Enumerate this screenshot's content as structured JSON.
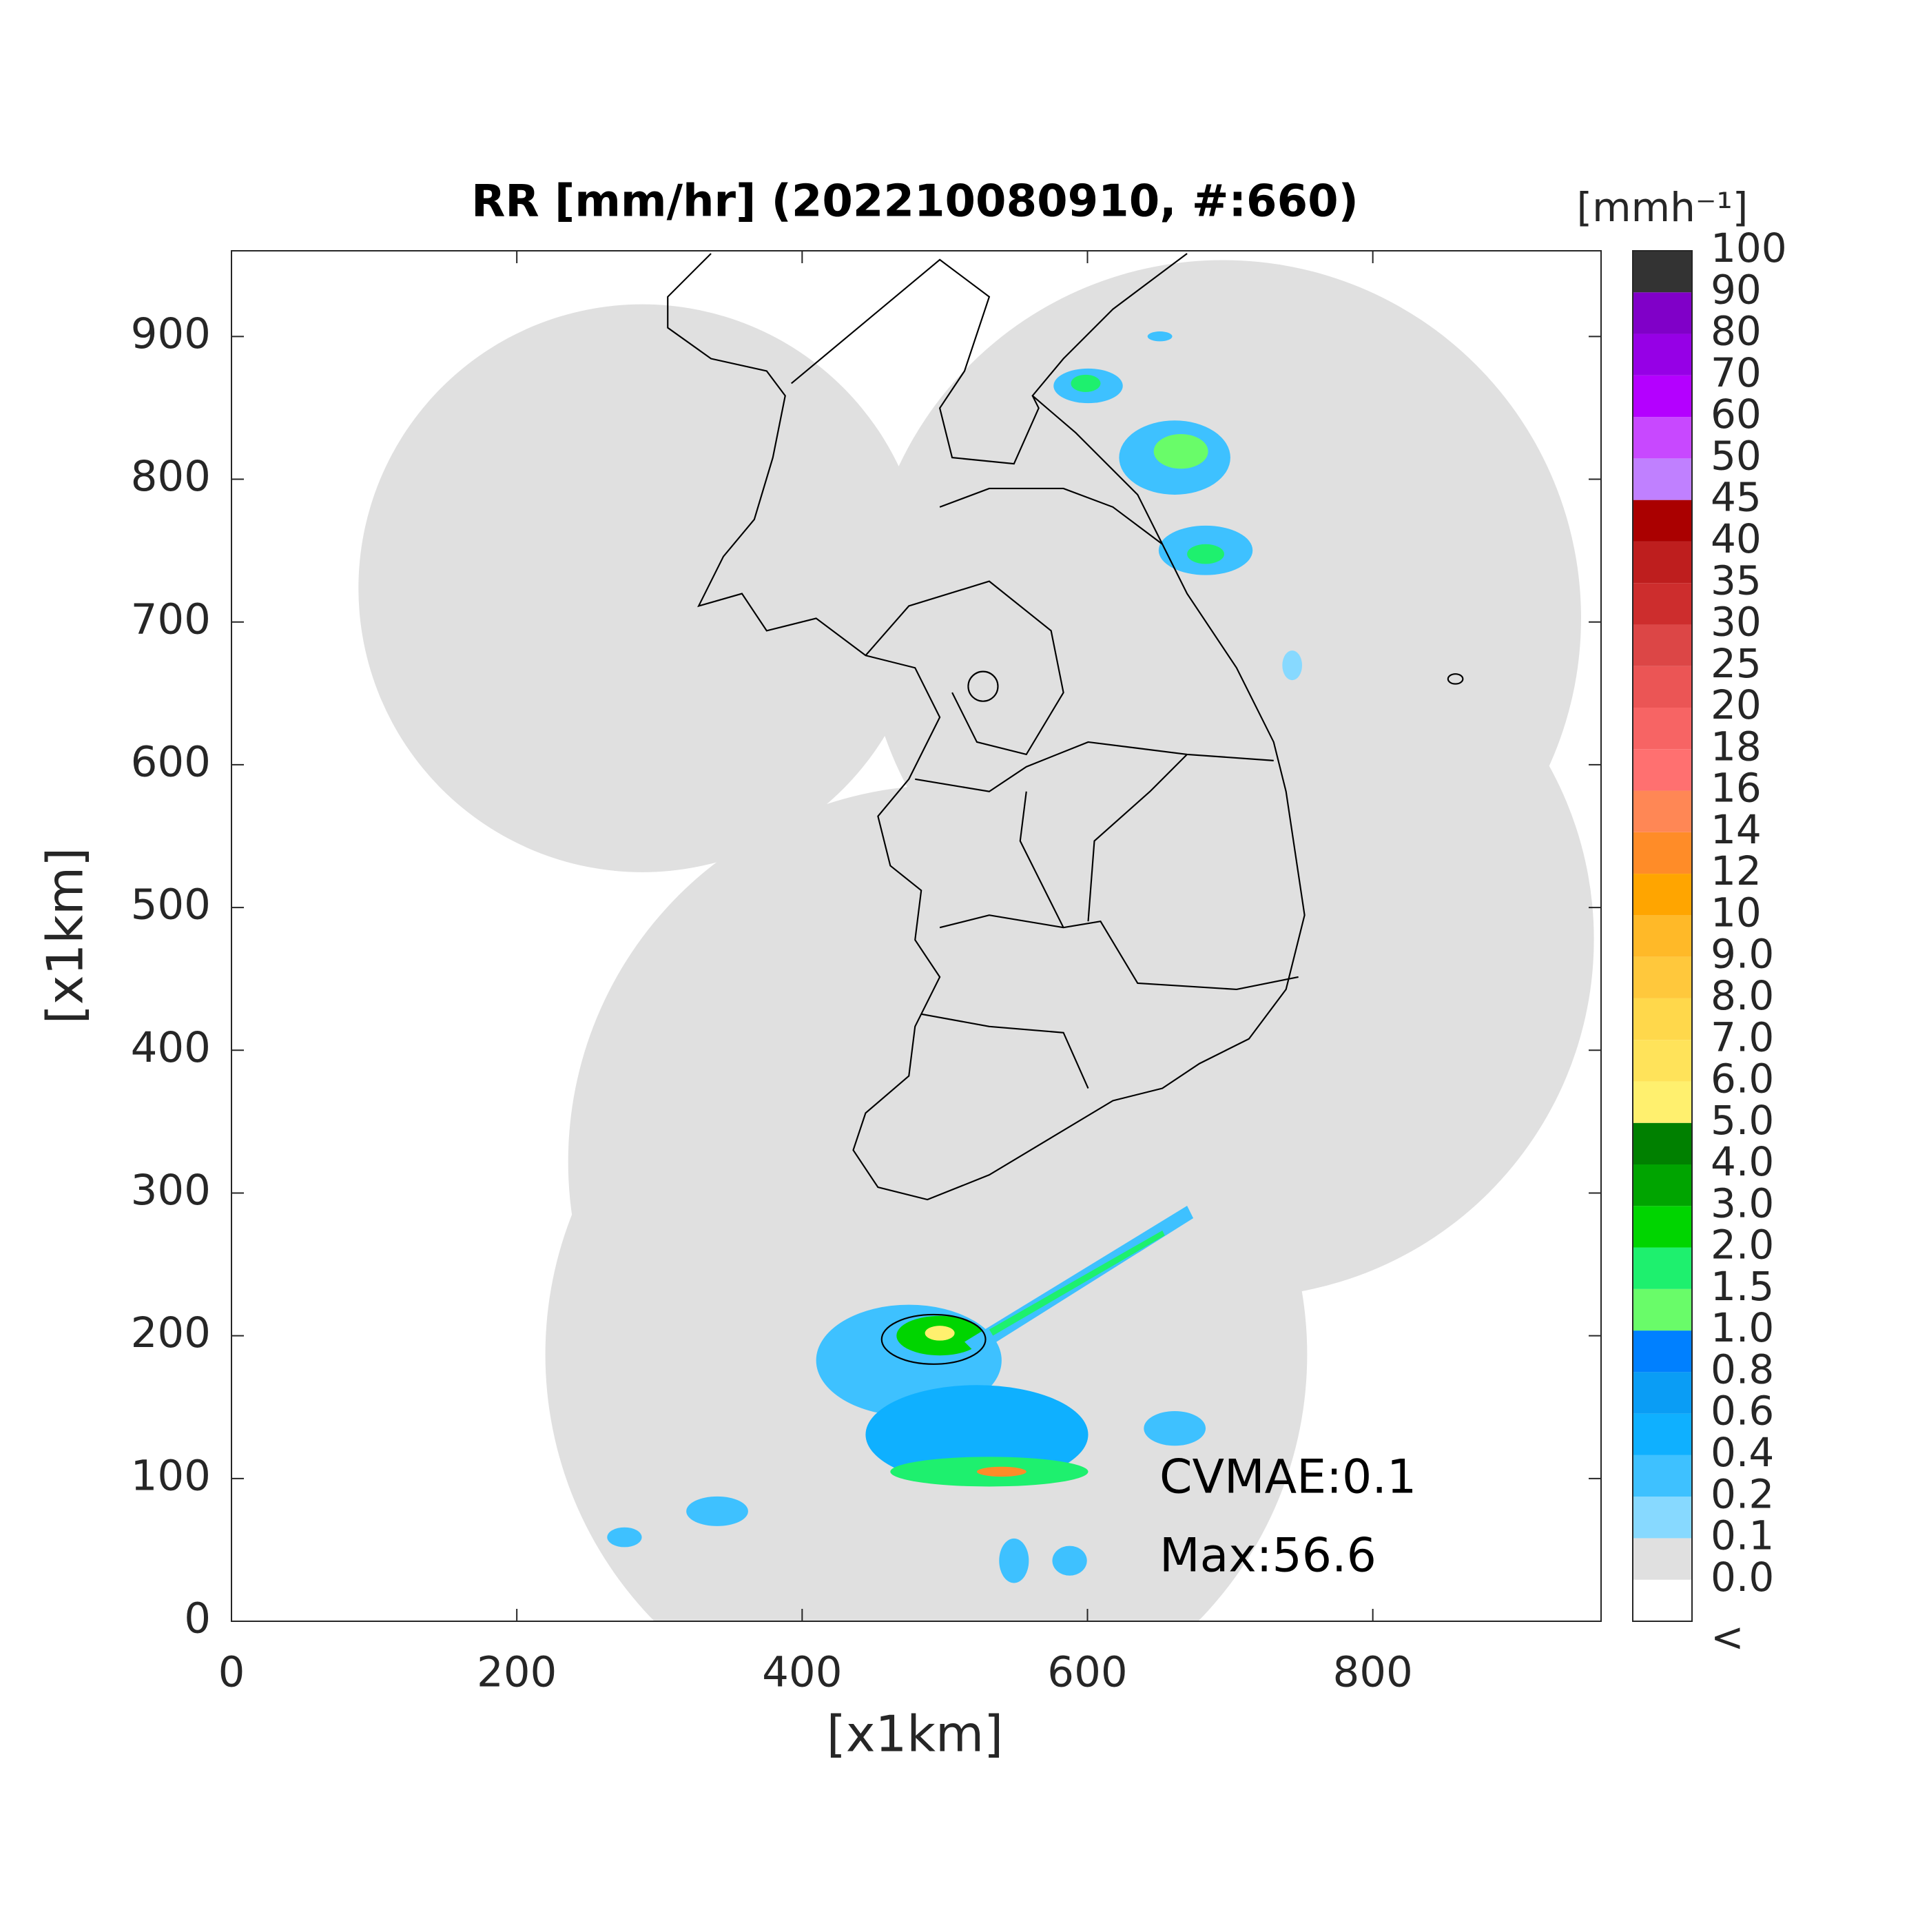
{
  "chart_data": {
    "type": "map",
    "title": "RR [mm/hr] (202210080910, #:660)",
    "xlabel": "[x1km]",
    "ylabel": "[x1km]",
    "xlim": [
      0,
      960
    ],
    "ylim": [
      0,
      960
    ],
    "xticks": [
      0,
      200,
      400,
      600,
      800
    ],
    "yticks": [
      0,
      100,
      200,
      300,
      400,
      500,
      600,
      700,
      800,
      900
    ],
    "annotations": [
      "CVMAE:0.1",
      "Max:56.6"
    ],
    "colorbar": {
      "title": "[mmh⁻¹]",
      "below_label": "<",
      "ticks": [
        {
          "value": 0,
          "label": "0.0"
        },
        0.1,
        0.2,
        0.4,
        0.6,
        0.8,
        {
          "value": 1,
          "label": "1.0"
        },
        1.5,
        {
          "value": 2,
          "label": "2.0"
        },
        {
          "value": 3,
          "label": "3.0"
        },
        {
          "value": 4,
          "label": "4.0"
        },
        {
          "value": 5,
          "label": "5.0"
        },
        {
          "value": 6,
          "label": "6.0"
        },
        {
          "value": 7,
          "label": "7.0"
        },
        {
          "value": 8,
          "label": "8.0"
        },
        {
          "value": 9,
          "label": "9.0"
        },
        10,
        12,
        14,
        16,
        18,
        20,
        25,
        30,
        35,
        40,
        45,
        50,
        60,
        70,
        80,
        90,
        100
      ],
      "colors": [
        "#ffffff",
        "#e0e0e0",
        "#87d9ff",
        "#3ec1ff",
        "#0fb0ff",
        "#0a9df5",
        "#0080ff",
        "#69fc69",
        "#1ef06e",
        "#00d500",
        "#00a400",
        "#008000",
        "#fff06e",
        "#ffe35a",
        "#ffd84b",
        "#ffc83c",
        "#ffb928",
        "#ffa500",
        "#ff8c28",
        "#ff8755",
        "#ff7070",
        "#f76464",
        "#eb5555",
        "#dc4646",
        "#cd2d2d",
        "#be1e1e",
        "#aa0000",
        "#c080ff",
        "#c848ff",
        "#b400ff",
        "#9600e6",
        "#8000c8",
        "#333333"
      ]
    }
  }
}
